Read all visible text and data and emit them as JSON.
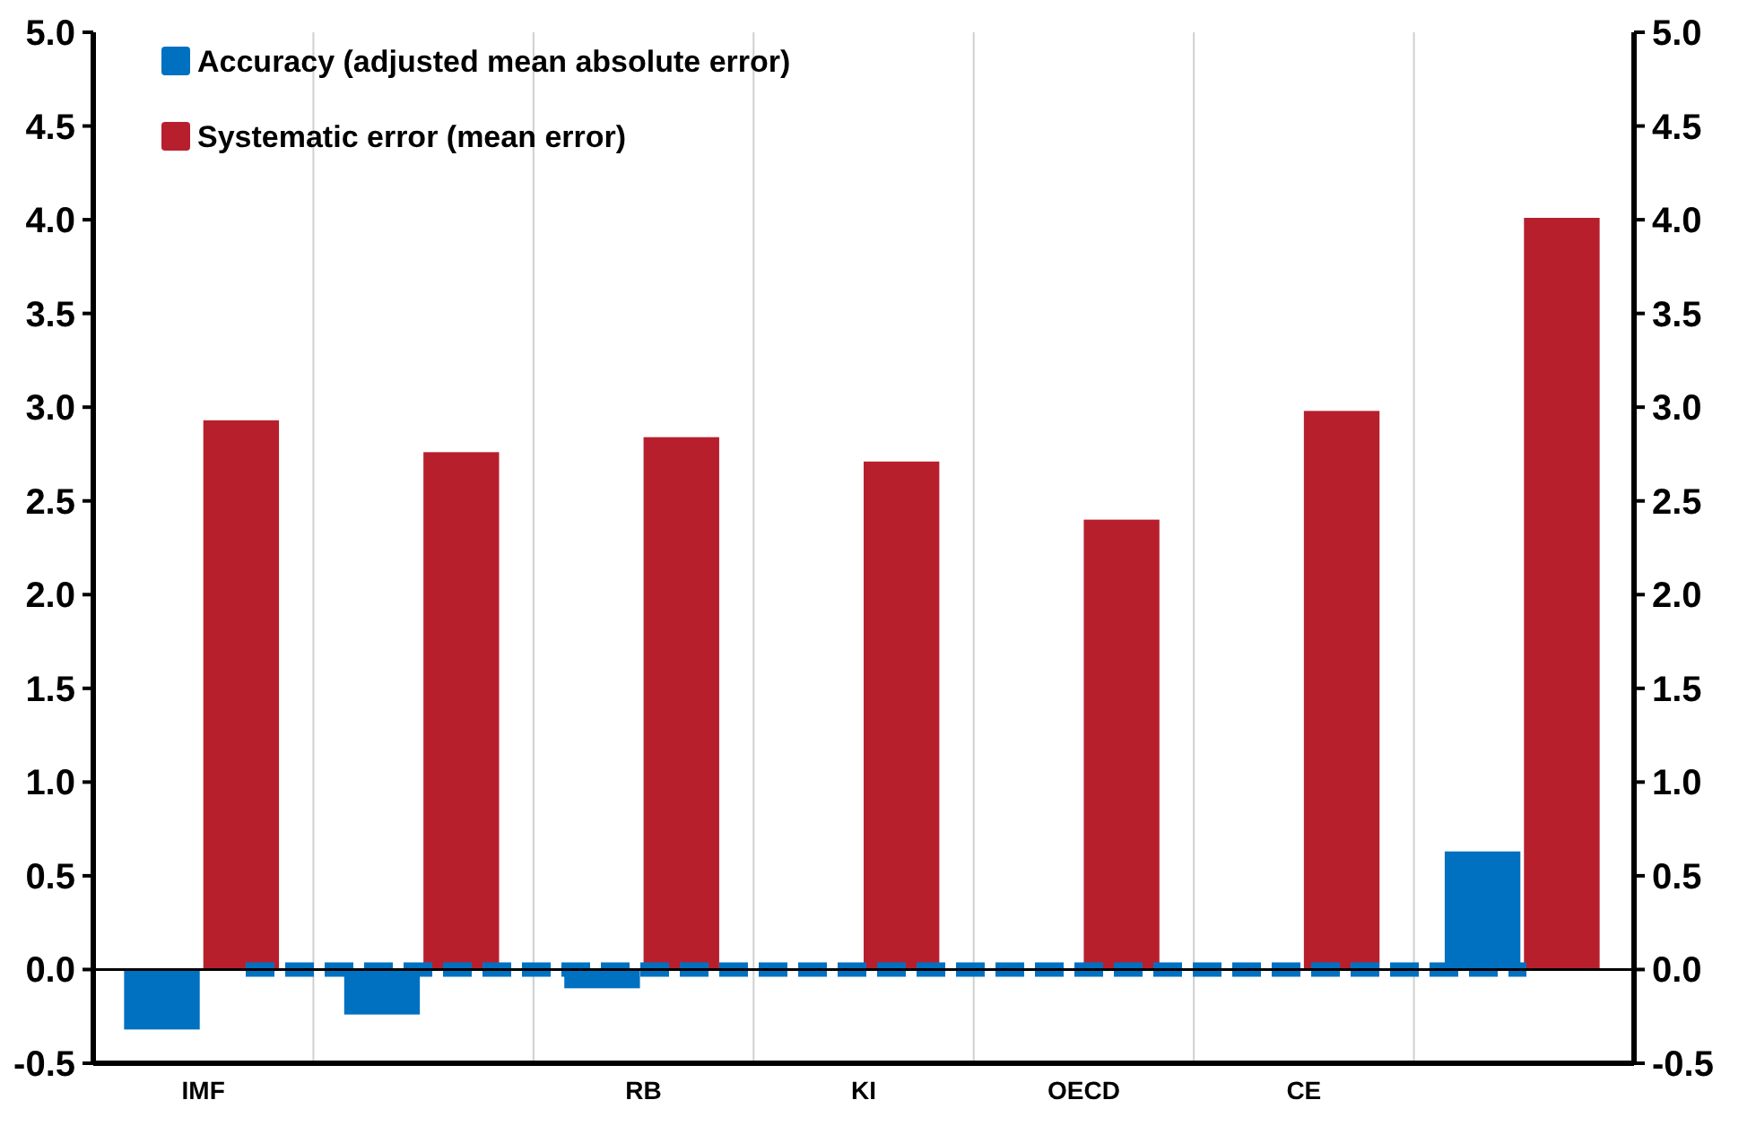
{
  "chart_data": {
    "type": "bar",
    "categories": [
      "IMF",
      null,
      "RB",
      "KI",
      "OECD",
      "CE",
      null
    ],
    "series": [
      {
        "name": "Accuracy (adjusted mean absolute error)",
        "color": "#0070c0",
        "values": [
          -0.32,
          -0.24,
          -0.1,
          0,
          0,
          0,
          0.63
        ]
      },
      {
        "name": "Systematic error (mean error)",
        "color": "#b81f2d",
        "values": [
          2.93,
          2.76,
          2.84,
          2.71,
          2.4,
          2.98,
          4.01
        ]
      }
    ],
    "ylim": [
      -0.5,
      5
    ],
    "yticks": [
      {
        "value": -0.5,
        "label": "-0.5"
      },
      {
        "value": 0,
        "label": "0.0"
      },
      {
        "value": 0.5,
        "label": "0.5"
      },
      {
        "value": 1,
        "label": "1.0"
      },
      {
        "value": 1.5,
        "label": "1.5"
      },
      {
        "value": 2,
        "label": "2.0"
      },
      {
        "value": 2.5,
        "label": "2.5"
      },
      {
        "value": 3,
        "label": "3.0"
      },
      {
        "value": 3.5,
        "label": "3.5"
      },
      {
        "value": 4,
        "label": "4.0"
      },
      {
        "value": 4.5,
        "label": "4.5"
      },
      {
        "value": 5,
        "label": "5.0"
      }
    ],
    "y2lim": [
      -0.5,
      5
    ],
    "y2ticks": [
      {
        "value": -0.5,
        "label": "-0.5"
      },
      {
        "value": 0,
        "label": "0.0"
      },
      {
        "value": 0.5,
        "label": "0.5"
      },
      {
        "value": 1,
        "label": "1.0"
      },
      {
        "value": 1.5,
        "label": "1.5"
      },
      {
        "value": 2,
        "label": "2.0"
      },
      {
        "value": 2.5,
        "label": "2.5"
      },
      {
        "value": 3,
        "label": "3.0"
      },
      {
        "value": 3.5,
        "label": "3.5"
      },
      {
        "value": 4,
        "label": "4.0"
      },
      {
        "value": 4.5,
        "label": "4.5"
      },
      {
        "value": 5,
        "label": "5.0"
      }
    ],
    "ref_lines": [
      {
        "axis": "y",
        "value": 0,
        "color": "#0070c0",
        "line_style": "dashed"
      }
    ],
    "grid": "x",
    "legend": "top left"
  }
}
